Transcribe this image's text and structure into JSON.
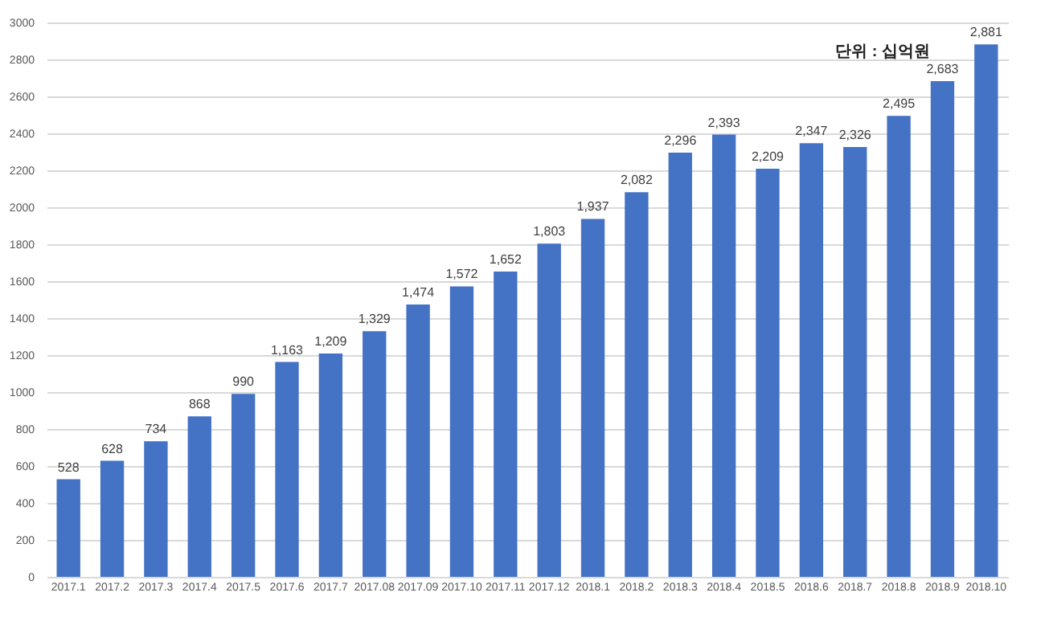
{
  "chart_data": {
    "type": "bar",
    "categories": [
      "2017.1",
      "2017.2",
      "2017.3",
      "2017.4",
      "2017.5",
      "2017.6",
      "2017.7",
      "2017.08",
      "2017.09",
      "2017.10",
      "2017.11",
      "2017.12",
      "2018.1",
      "2018.2",
      "2018.3",
      "2018.4",
      "2018.5",
      "2018.6",
      "2018.7",
      "2018.8",
      "2018.9",
      "2018.10"
    ],
    "values": [
      528,
      628,
      734,
      868,
      990,
      1163,
      1209,
      1329,
      1474,
      1572,
      1652,
      1803,
      1937,
      2082,
      2296,
      2393,
      2209,
      2347,
      2326,
      2495,
      2683,
      2881
    ],
    "value_labels": [
      "528",
      "628",
      "734",
      "868",
      "990",
      "1,163",
      "1,209",
      "1,329",
      "1,474",
      "1,572",
      "1,652",
      "1,803",
      "1,937",
      "2,082",
      "2,296",
      "2,393",
      "2,209",
      "2,347",
      "2,326",
      "2,495",
      "2,683",
      "2,881"
    ],
    "color": "#4472c4",
    "ylim": [
      0,
      3000
    ],
    "yticks": [
      0,
      200,
      400,
      600,
      800,
      1000,
      1200,
      1400,
      1600,
      1800,
      2000,
      2200,
      2400,
      2600,
      2800,
      3000
    ],
    "grid": "y",
    "annotations": [
      "단위 : 십억원"
    ]
  }
}
